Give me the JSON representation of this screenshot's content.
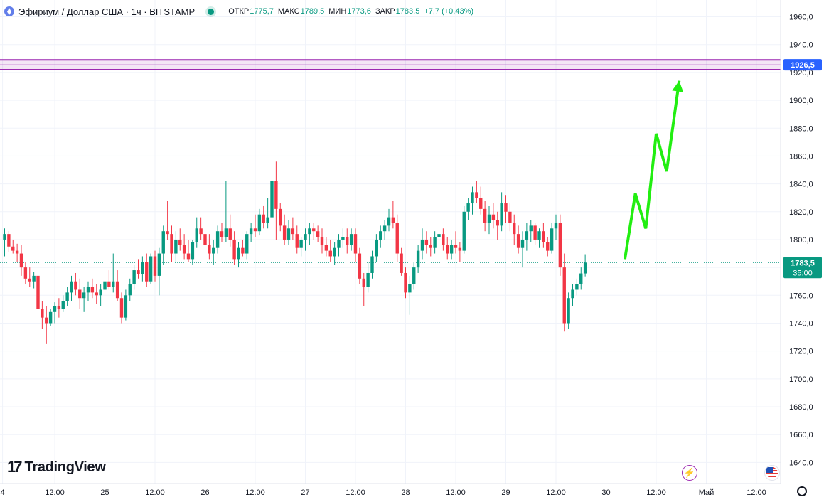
{
  "header": {
    "symbol": "Эфириум / Доллар США · 1ч · BITSTAMP",
    "open_label": "ОТКР",
    "open_value": "1775,7",
    "high_label": "МАКС",
    "high_value": "1789,5",
    "low_label": "МИН",
    "low_value": "1773,6",
    "close_label": "ЗАКР",
    "close_value": "1783,5",
    "change": "+7,7 (+0,43%)"
  },
  "logo_text": "TradingView",
  "logo_mark": "17",
  "icons": {
    "lightning": "lightning-icon",
    "flag": "us-flag-icon",
    "settings": "gear-icon"
  },
  "colors": {
    "up": "#089981",
    "down": "#f23645",
    "forecast": "#22ee11",
    "zone": "#9c27b0",
    "price_label": "#2962ff"
  },
  "chart_data": {
    "type": "candlestick",
    "timeframe": "1ч",
    "ylim": [
      1631,
      1971
    ],
    "y_ticks": [
      1640,
      1660,
      1680,
      1700,
      1720,
      1740,
      1760,
      1780,
      1800,
      1820,
      1840,
      1860,
      1880,
      1900,
      1920,
      1940,
      1960
    ],
    "y_tick_labels": [
      "1640,0",
      "1660,0",
      "1680,0",
      "1700,0",
      "1720,0",
      "1740,0",
      "1760,0",
      "1780,0",
      "1800,0",
      "1820,0",
      "1840,0",
      "1860,0",
      "1880,0",
      "1900,0",
      "1920,0",
      "1940,0",
      "1960,0"
    ],
    "x_ticks": [
      {
        "bar": -0.5,
        "label": "4"
      },
      {
        "bar": 12,
        "label": "12:00"
      },
      {
        "bar": 24,
        "label": "25"
      },
      {
        "bar": 36,
        "label": "12:00"
      },
      {
        "bar": 48,
        "label": "26"
      },
      {
        "bar": 60,
        "label": "12:00"
      },
      {
        "bar": 72,
        "label": "27"
      },
      {
        "bar": 84,
        "label": "12:00"
      },
      {
        "bar": 96,
        "label": "28"
      },
      {
        "bar": 108,
        "label": "12:00"
      },
      {
        "bar": 120,
        "label": "29"
      },
      {
        "bar": 132,
        "label": "12:00"
      },
      {
        "bar": 144,
        "label": "30"
      },
      {
        "bar": 156,
        "label": "12:00"
      },
      {
        "bar": 168,
        "label": "Май"
      },
      {
        "bar": 180,
        "label": "12:00"
      }
    ],
    "ohlc": [
      [
        1800,
        1808,
        1788,
        1804
      ],
      [
        1804,
        1806,
        1791,
        1795
      ],
      [
        1795,
        1800,
        1790,
        1792
      ],
      [
        1792,
        1797,
        1784,
        1790
      ],
      [
        1790,
        1796,
        1774,
        1780
      ],
      [
        1780,
        1784,
        1768,
        1772
      ],
      [
        1772,
        1780,
        1766,
        1770
      ],
      [
        1770,
        1777,
        1765,
        1774
      ],
      [
        1774,
        1776,
        1745,
        1750
      ],
      [
        1750,
        1756,
        1736,
        1744
      ],
      [
        1744,
        1752,
        1725,
        1740
      ],
      [
        1740,
        1750,
        1738,
        1748
      ],
      [
        1748,
        1755,
        1740,
        1752
      ],
      [
        1752,
        1758,
        1744,
        1750
      ],
      [
        1750,
        1760,
        1748,
        1756
      ],
      [
        1756,
        1766,
        1752,
        1762
      ],
      [
        1762,
        1774,
        1756,
        1770
      ],
      [
        1770,
        1776,
        1760,
        1764
      ],
      [
        1764,
        1772,
        1750,
        1758
      ],
      [
        1758,
        1766,
        1748,
        1762
      ],
      [
        1762,
        1770,
        1756,
        1766
      ],
      [
        1766,
        1772,
        1758,
        1762
      ],
      [
        1762,
        1768,
        1754,
        1760
      ],
      [
        1760,
        1768,
        1752,
        1764
      ],
      [
        1764,
        1774,
        1760,
        1770
      ],
      [
        1770,
        1778,
        1764,
        1766
      ],
      [
        1766,
        1790,
        1762,
        1770
      ],
      [
        1770,
        1778,
        1756,
        1758
      ],
      [
        1758,
        1762,
        1740,
        1744
      ],
      [
        1744,
        1764,
        1742,
        1760
      ],
      [
        1760,
        1772,
        1756,
        1768
      ],
      [
        1768,
        1782,
        1764,
        1778
      ],
      [
        1778,
        1786,
        1772,
        1775
      ],
      [
        1775,
        1788,
        1770,
        1784
      ],
      [
        1784,
        1790,
        1766,
        1770
      ],
      [
        1770,
        1790,
        1768,
        1788
      ],
      [
        1788,
        1792,
        1770,
        1774
      ],
      [
        1774,
        1794,
        1760,
        1790
      ],
      [
        1790,
        1810,
        1782,
        1806
      ],
      [
        1806,
        1828,
        1800,
        1804
      ],
      [
        1804,
        1810,
        1784,
        1790
      ],
      [
        1790,
        1806,
        1784,
        1800
      ],
      [
        1800,
        1808,
        1792,
        1796
      ],
      [
        1796,
        1804,
        1786,
        1790
      ],
      [
        1790,
        1800,
        1784,
        1786
      ],
      [
        1786,
        1800,
        1782,
        1798
      ],
      [
        1798,
        1816,
        1794,
        1808
      ],
      [
        1808,
        1816,
        1800,
        1804
      ],
      [
        1804,
        1812,
        1790,
        1796
      ],
      [
        1796,
        1804,
        1786,
        1790
      ],
      [
        1790,
        1800,
        1782,
        1794
      ],
      [
        1794,
        1810,
        1790,
        1806
      ],
      [
        1806,
        1812,
        1798,
        1802
      ],
      [
        1802,
        1842,
        1798,
        1808
      ],
      [
        1808,
        1818,
        1795,
        1800
      ],
      [
        1800,
        1806,
        1782,
        1786
      ],
      [
        1786,
        1798,
        1780,
        1794
      ],
      [
        1794,
        1800,
        1788,
        1790
      ],
      [
        1790,
        1806,
        1786,
        1804
      ],
      [
        1804,
        1812,
        1798,
        1808
      ],
      [
        1808,
        1818,
        1802,
        1806
      ],
      [
        1806,
        1822,
        1803,
        1818
      ],
      [
        1818,
        1824,
        1808,
        1812
      ],
      [
        1812,
        1830,
        1808,
        1816
      ],
      [
        1816,
        1855,
        1812,
        1842
      ],
      [
        1842,
        1856,
        1800,
        1822
      ],
      [
        1822,
        1826,
        1806,
        1810
      ],
      [
        1810,
        1818,
        1796,
        1800
      ],
      [
        1800,
        1814,
        1796,
        1808
      ],
      [
        1808,
        1816,
        1800,
        1804
      ],
      [
        1804,
        1810,
        1790,
        1794
      ],
      [
        1794,
        1802,
        1788,
        1800
      ],
      [
        1800,
        1808,
        1792,
        1804
      ],
      [
        1804,
        1812,
        1796,
        1808
      ],
      [
        1808,
        1812,
        1800,
        1806
      ],
      [
        1806,
        1810,
        1798,
        1802
      ],
      [
        1802,
        1808,
        1790,
        1796
      ],
      [
        1796,
        1802,
        1788,
        1792
      ],
      [
        1792,
        1800,
        1784,
        1788
      ],
      [
        1788,
        1798,
        1782,
        1794
      ],
      [
        1794,
        1804,
        1788,
        1800
      ],
      [
        1800,
        1808,
        1794,
        1802
      ],
      [
        1802,
        1808,
        1790,
        1796
      ],
      [
        1796,
        1808,
        1792,
        1804
      ],
      [
        1804,
        1808,
        1784,
        1790
      ],
      [
        1790,
        1794,
        1768,
        1772
      ],
      [
        1772,
        1776,
        1752,
        1766
      ],
      [
        1766,
        1784,
        1762,
        1776
      ],
      [
        1776,
        1792,
        1772,
        1788
      ],
      [
        1788,
        1804,
        1784,
        1800
      ],
      [
        1800,
        1810,
        1794,
        1806
      ],
      [
        1806,
        1814,
        1800,
        1810
      ],
      [
        1810,
        1822,
        1806,
        1816
      ],
      [
        1816,
        1828,
        1808,
        1812
      ],
      [
        1812,
        1818,
        1784,
        1790
      ],
      [
        1790,
        1794,
        1774,
        1776
      ],
      [
        1776,
        1780,
        1758,
        1762
      ],
      [
        1762,
        1774,
        1746,
        1768
      ],
      [
        1768,
        1784,
        1764,
        1780
      ],
      [
        1780,
        1796,
        1776,
        1792
      ],
      [
        1792,
        1808,
        1786,
        1800
      ],
      [
        1800,
        1806,
        1790,
        1796
      ],
      [
        1796,
        1802,
        1788,
        1794
      ],
      [
        1794,
        1806,
        1790,
        1802
      ],
      [
        1802,
        1810,
        1796,
        1804
      ],
      [
        1804,
        1808,
        1792,
        1796
      ],
      [
        1796,
        1802,
        1786,
        1790
      ],
      [
        1790,
        1800,
        1786,
        1796
      ],
      [
        1796,
        1806,
        1790,
        1794
      ],
      [
        1794,
        1798,
        1784,
        1792
      ],
      [
        1792,
        1824,
        1790,
        1820
      ],
      [
        1820,
        1830,
        1814,
        1826
      ],
      [
        1826,
        1838,
        1818,
        1834
      ],
      [
        1834,
        1842,
        1826,
        1830
      ],
      [
        1830,
        1838,
        1818,
        1822
      ],
      [
        1822,
        1828,
        1806,
        1812
      ],
      [
        1812,
        1824,
        1804,
        1818
      ],
      [
        1818,
        1826,
        1808,
        1814
      ],
      [
        1814,
        1820,
        1800,
        1810
      ],
      [
        1810,
        1834,
        1806,
        1826
      ],
      [
        1826,
        1832,
        1812,
        1820
      ],
      [
        1820,
        1826,
        1806,
        1812
      ],
      [
        1812,
        1818,
        1796,
        1804
      ],
      [
        1804,
        1810,
        1790,
        1794
      ],
      [
        1794,
        1806,
        1780,
        1800
      ],
      [
        1800,
        1812,
        1792,
        1806
      ],
      [
        1806,
        1814,
        1798,
        1810
      ],
      [
        1810,
        1812,
        1796,
        1800
      ],
      [
        1800,
        1808,
        1794,
        1806
      ],
      [
        1806,
        1812,
        1794,
        1798
      ],
      [
        1798,
        1802,
        1788,
        1792
      ],
      [
        1792,
        1812,
        1790,
        1808
      ],
      [
        1808,
        1818,
        1800,
        1812
      ],
      [
        1812,
        1818,
        1774,
        1780
      ],
      [
        1780,
        1790,
        1734,
        1740
      ],
      [
        1740,
        1762,
        1736,
        1758
      ],
      [
        1758,
        1768,
        1752,
        1764
      ],
      [
        1764,
        1772,
        1760,
        1768
      ],
      [
        1768,
        1780,
        1764,
        1775.7
      ],
      [
        1775.7,
        1789.5,
        1773.6,
        1783.5
      ]
    ],
    "current_price": {
      "value": 1783.5,
      "label": "1783,5",
      "countdown": "35:00"
    },
    "target_zone": {
      "top": 1929,
      "bottom": 1922,
      "label": "1926,5"
    },
    "forecast_path": [
      [
        148.5,
        1786
      ],
      [
        151,
        1833
      ],
      [
        153.5,
        1808
      ],
      [
        156,
        1876
      ],
      [
        158.5,
        1849
      ],
      [
        161.5,
        1914
      ]
    ]
  }
}
